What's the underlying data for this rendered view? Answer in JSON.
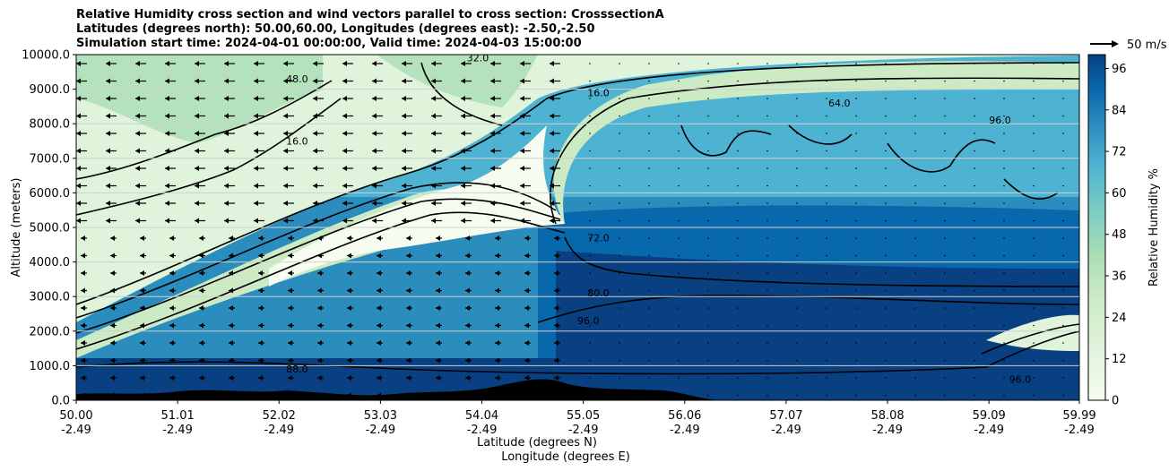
{
  "title_lines": [
    "Relative Humidity cross section and wind vectors parallel to cross section: CrosssectionA",
    "Latitudes (degrees north): 50.00,60.00, Longitudes (degrees east): -2.50,-2.50",
    "Simulation start time: 2024-04-01 00:00:00, Valid time: 2024-04-03 15:00:00"
  ],
  "colors": {
    "low": "#f7fcf0",
    "mid_green": "#a8ddb5",
    "mid_blue": "#4eb3d3",
    "high": "#084081",
    "terrain": "#000000",
    "contour": "#000000"
  },
  "chart_data": {
    "type": "heatmap",
    "ylabel": "Altitude (meters)",
    "xlabel_lines": [
      "Latitude (degrees N)",
      "Longitude (degrees E)"
    ],
    "ylim": [
      0,
      10000
    ],
    "y_ticks": [
      "0.0",
      "1000.0",
      "2000.0",
      "3000.0",
      "4000.0",
      "5000.0",
      "6000.0",
      "7000.0",
      "8000.0",
      "9000.0",
      "10000.0"
    ],
    "x_ticks": [
      {
        "lat": "50.00",
        "lon": "-2.49"
      },
      {
        "lat": "51.01",
        "lon": "-2.49"
      },
      {
        "lat": "52.02",
        "lon": "-2.49"
      },
      {
        "lat": "53.03",
        "lon": "-2.49"
      },
      {
        "lat": "54.04",
        "lon": "-2.49"
      },
      {
        "lat": "55.05",
        "lon": "-2.49"
      },
      {
        "lat": "56.06",
        "lon": "-2.49"
      },
      {
        "lat": "57.07",
        "lon": "-2.49"
      },
      {
        "lat": "58.08",
        "lon": "-2.49"
      },
      {
        "lat": "59.09",
        "lon": "-2.49"
      },
      {
        "lat": "59.99",
        "lon": "-2.49"
      }
    ],
    "grid": true,
    "colorbar": {
      "label": "Relative Humidity %",
      "ticks": [
        "0",
        "12",
        "24",
        "36",
        "48",
        "60",
        "72",
        "84",
        "96"
      ],
      "range": [
        0,
        100
      ]
    },
    "wind_key": {
      "label": "50 m/s"
    },
    "contour_labels": [
      {
        "text": "16.0",
        "lat": 55.2,
        "alt": 8800
      },
      {
        "text": "64.0",
        "lat": 57.6,
        "alt": 8500
      },
      {
        "text": "96.0",
        "lat": 59.2,
        "alt": 8000
      },
      {
        "text": "72.0",
        "lat": 55.2,
        "alt": 4600
      },
      {
        "text": "80.0",
        "lat": 55.2,
        "alt": 3000
      },
      {
        "text": "96.0",
        "lat": 55.1,
        "alt": 2200
      },
      {
        "text": "88.0",
        "lat": 52.2,
        "alt": 800
      },
      {
        "text": "96.0",
        "lat": 59.4,
        "alt": 500
      },
      {
        "text": "16.0",
        "lat": 52.2,
        "alt": 7400
      },
      {
        "text": "48.0",
        "lat": 52.2,
        "alt": 9200
      },
      {
        "text": "32.0",
        "lat": 54.0,
        "alt": 9800
      }
    ],
    "rh_bands": [
      {
        "name": "very moist near surface",
        "alt_from": 0,
        "alt_to": 1000,
        "rh": 90
      },
      {
        "name": "moist lower layer north",
        "alt_from": 1000,
        "alt_to": 5500,
        "rh": 88
      },
      {
        "name": "dry wedge",
        "alt_from": 3500,
        "alt_to": 8000,
        "rh": 10
      }
    ]
  }
}
